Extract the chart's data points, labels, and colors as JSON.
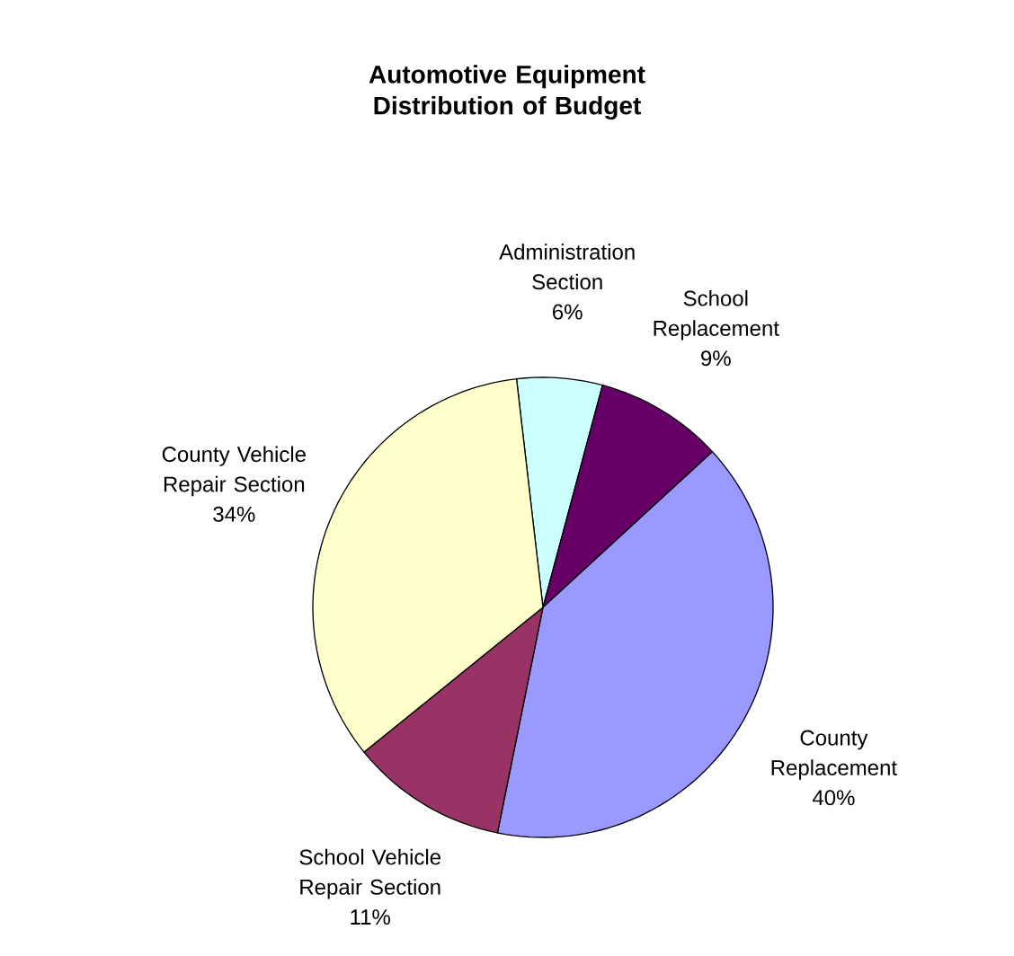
{
  "chart_data": {
    "type": "pie",
    "title": "Automotive Equipment Distribution of Budget",
    "categories": [
      "Administration Section",
      "School Replacement",
      "County Replacement",
      "School Vehicle Repair Section",
      "County Vehicle Repair Section"
    ],
    "values": [
      6,
      9,
      40,
      11,
      34
    ],
    "value_labels": [
      "6%",
      "9%",
      "40%",
      "11%",
      "34%"
    ],
    "colors": [
      "#ccffff",
      "#660066",
      "#9999ff",
      "#993366",
      "#ffffcc"
    ]
  }
}
